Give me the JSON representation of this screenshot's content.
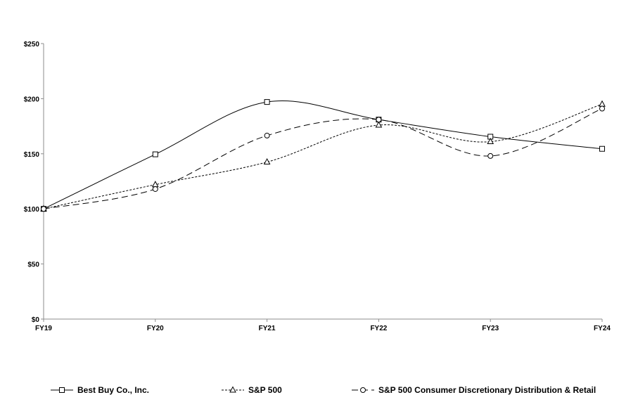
{
  "chart_data": {
    "type": "line",
    "categories": [
      "FY19",
      "FY20",
      "FY21",
      "FY22",
      "FY23",
      "FY24"
    ],
    "series": [
      {
        "name": "Best Buy Co., Inc.",
        "values": [
          100,
          149.5,
          197,
          181,
          165.5,
          154.5
        ],
        "marker": "square",
        "dash": "solid"
      },
      {
        "name": "S&P 500",
        "values": [
          100,
          122,
          142.5,
          176,
          161,
          195
        ],
        "marker": "triangle",
        "dash": "short-dash"
      },
      {
        "name": "S&P 500 Consumer Discretionary Distribution & Retail",
        "values": [
          100,
          118,
          166.5,
          181,
          148,
          191
        ],
        "marker": "circle",
        "dash": "long-dash"
      }
    ],
    "y_ticks": [
      "$0",
      "$50",
      "$100",
      "$150",
      "$200",
      "$250"
    ],
    "ylim": [
      0,
      250
    ],
    "title": "",
    "xlabel": "",
    "ylabel": "",
    "grid": false,
    "legend_position": "bottom",
    "line_color": "#000000",
    "smooth": true
  }
}
